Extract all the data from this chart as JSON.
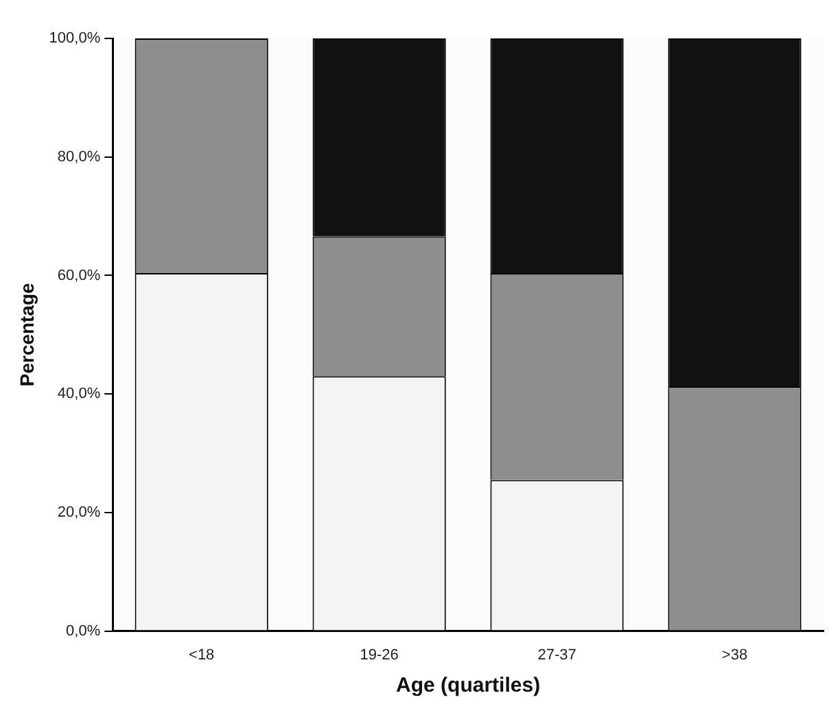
{
  "chart_data": {
    "type": "bar",
    "stacked": true,
    "xlabel": "Age (quartiles)",
    "ylabel": "Percentage",
    "categories": [
      "<18",
      "19-26",
      "27-37",
      ">38"
    ],
    "series": [
      {
        "color": "#f4f4f4",
        "values": [
          60.4,
          43.0,
          25.5,
          0
        ]
      },
      {
        "color": "#8e8e8e",
        "values": [
          39.6,
          23.6,
          34.9,
          41.3
        ]
      },
      {
        "color": "#111111",
        "values": [
          0,
          33.4,
          39.6,
          58.7
        ]
      }
    ],
    "ylim": [
      0,
      100
    ],
    "yticks": [
      {
        "value": 0,
        "label": "0,0%"
      },
      {
        "value": 20,
        "label": "20,0%"
      },
      {
        "value": 40,
        "label": "40,0%"
      },
      {
        "value": 60,
        "label": "60,0%"
      },
      {
        "value": 80,
        "label": "80,0%"
      },
      {
        "value": 100,
        "label": "100,0%"
      }
    ],
    "grid": false,
    "legend": false
  }
}
